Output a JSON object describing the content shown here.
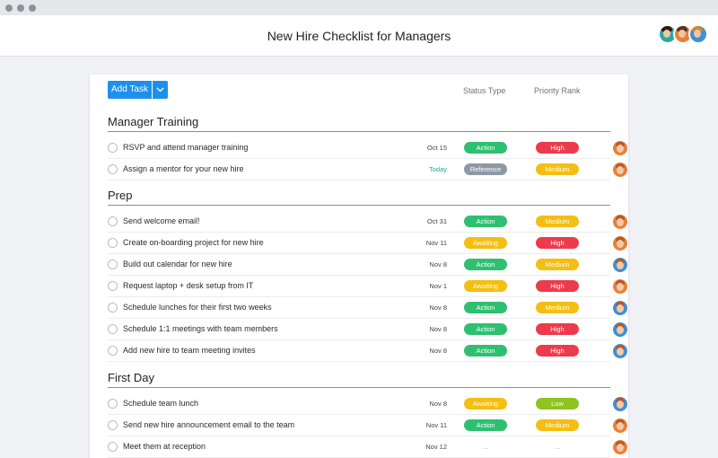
{
  "window": {
    "title": "New Hire Checklist for Managers"
  },
  "header": {
    "avatars": [
      {
        "bg": "#2fa8a3",
        "hair": "#2a1a12"
      },
      {
        "bg": "#e8803a",
        "hair": "#5a3322"
      },
      {
        "bg": "#3f8fd8",
        "hair": "#c98a3a"
      }
    ]
  },
  "toolbar": {
    "add_task_label": "Add Task",
    "columns": {
      "status": "Status Type",
      "priority": "Priority Rank"
    }
  },
  "colors": {
    "Action": "#2fbf71",
    "Reference": "#8e99a6",
    "Awaiting": "#f4be13",
    "High": "#ec3b4c",
    "Medium": "#f4be13",
    "Low": "#8fc31f",
    "avatar_orange": "#e8803a",
    "avatar_blue": "#3f8fd8"
  },
  "sections": [
    {
      "title": "Manager Training",
      "tasks": [
        {
          "name": "RSVP and attend manager training",
          "due": "Oct 15",
          "status": "Action",
          "priority": "High",
          "assignee": "orange"
        },
        {
          "name": "Assign a mentor for your new hire",
          "due": "Today",
          "status": "Reference",
          "priority": "Medium",
          "assignee": "orange"
        }
      ]
    },
    {
      "title": "Prep",
      "tasks": [
        {
          "name": "Send welcome email!",
          "due": "Oct 31",
          "status": "Action",
          "priority": "Medium",
          "assignee": "orange"
        },
        {
          "name": "Create on-boarding project for new hire",
          "due": "Nov 11",
          "status": "Awaiting",
          "priority": "High",
          "assignee": "orange"
        },
        {
          "name": "Build out calendar for new hire",
          "due": "Nov 8",
          "status": "Action",
          "priority": "Medium",
          "assignee": "blue"
        },
        {
          "name": "Request laptop + desk setup from IT",
          "due": "Nov 1",
          "status": "Awaiting",
          "priority": "High",
          "assignee": "orange"
        },
        {
          "name": "Schedule lunches for their first two weeks",
          "due": "Nov 8",
          "status": "Action",
          "priority": "Medium",
          "assignee": "blue"
        },
        {
          "name": "Schedule 1:1 meetings with team members",
          "due": "Nov 8",
          "status": "Action",
          "priority": "High",
          "assignee": "blue"
        },
        {
          "name": "Add new hire to team meeting invites",
          "due": "Nov 8",
          "status": "Action",
          "priority": "High",
          "assignee": "blue"
        }
      ]
    },
    {
      "title": "First Day",
      "tasks": [
        {
          "name": "Schedule team lunch",
          "due": "Nov 8",
          "status": "Awaiting",
          "priority": "Low",
          "assignee": "blue"
        },
        {
          "name": "Send new hire announcement email to the team",
          "due": "Nov 11",
          "status": "Action",
          "priority": "Medium",
          "assignee": "orange"
        },
        {
          "name": "Meet them at reception",
          "due": "Nov 12",
          "status": "...",
          "priority": "...",
          "assignee": "orange"
        }
      ]
    }
  ]
}
